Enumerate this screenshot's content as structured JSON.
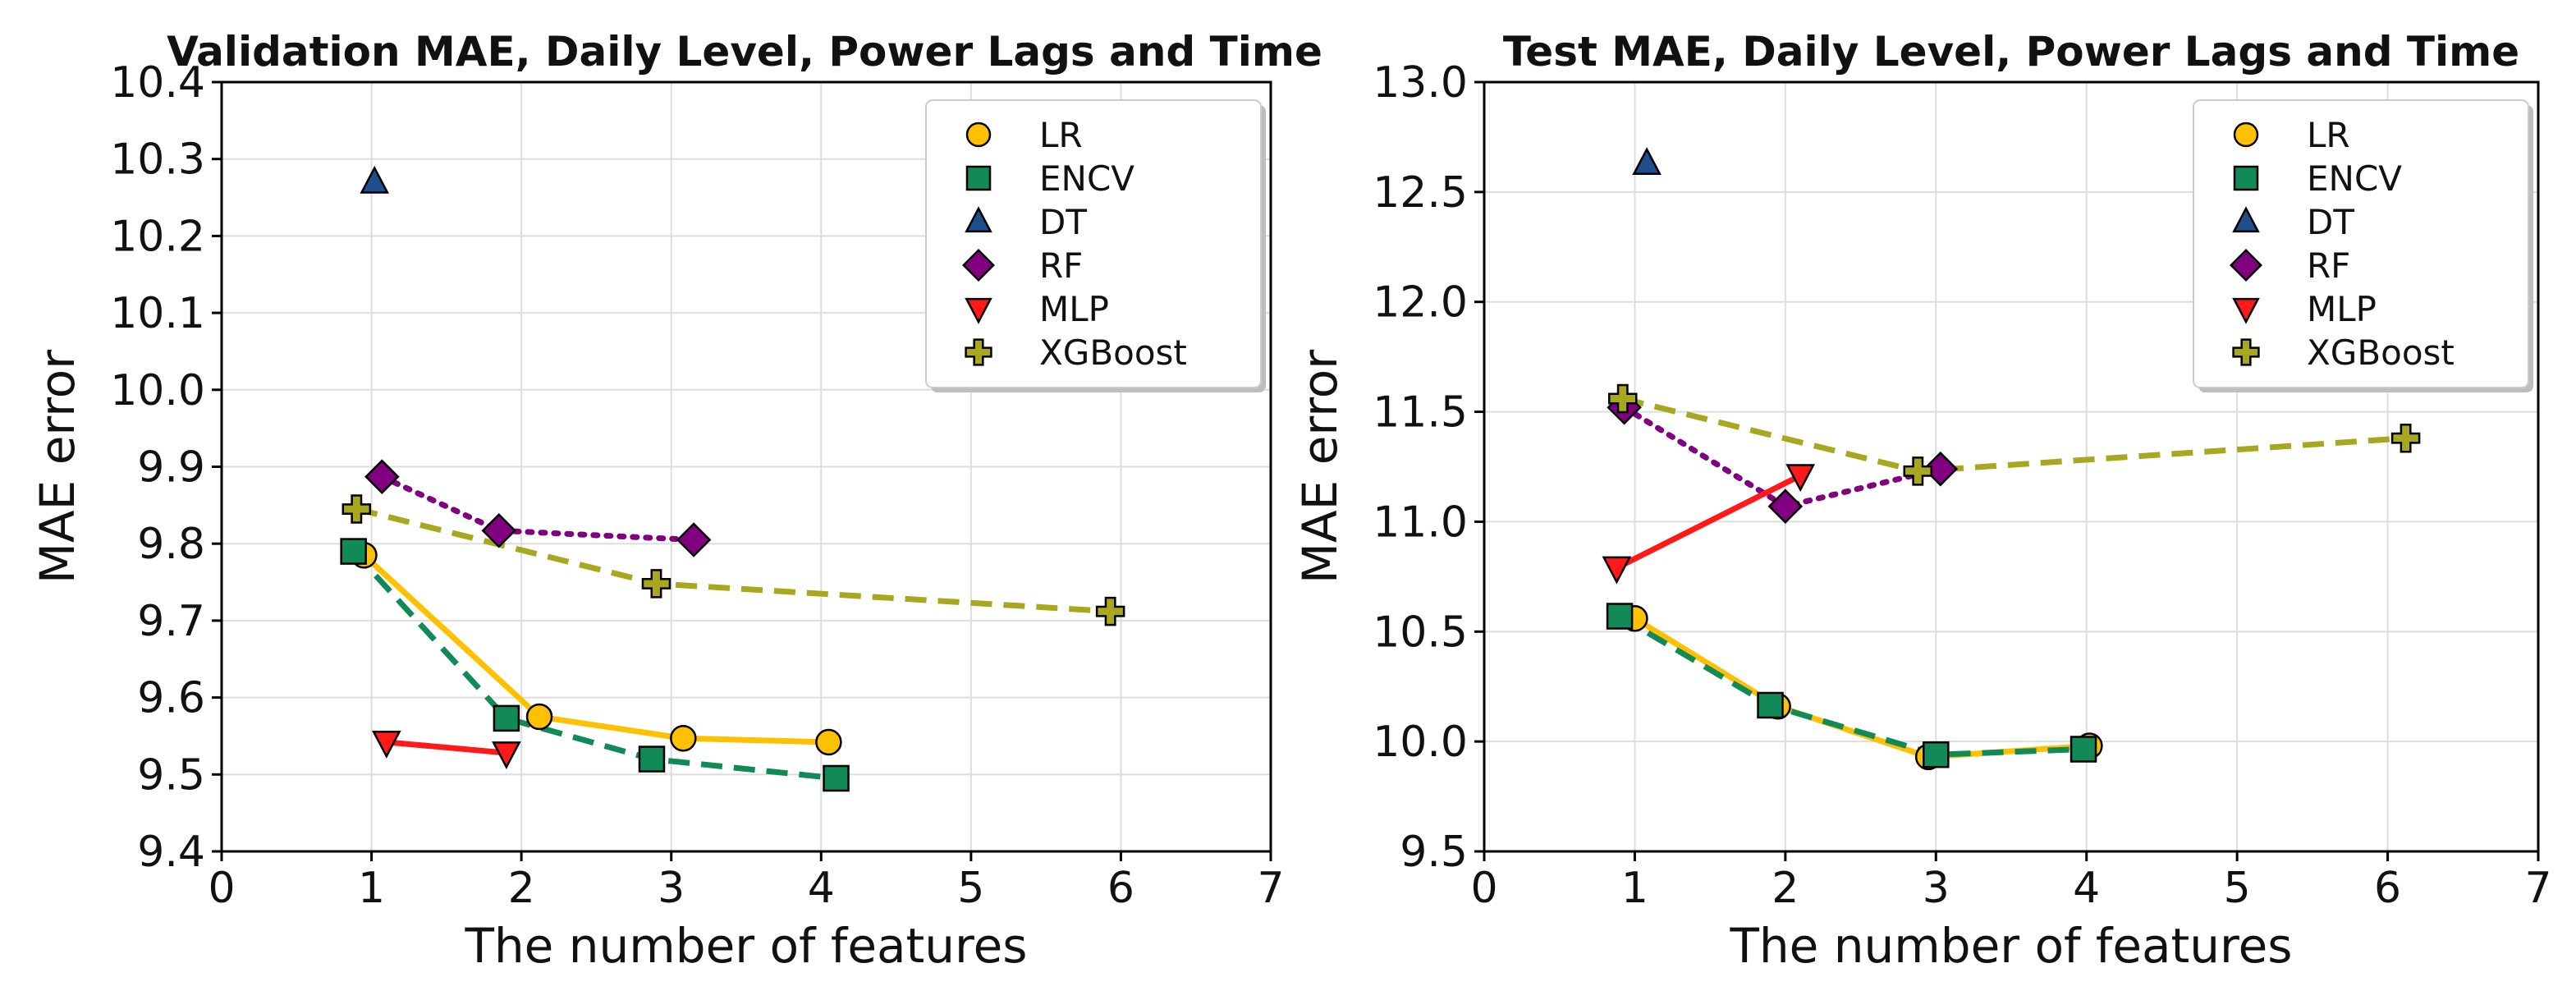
{
  "chart_data": [
    {
      "type": "line",
      "title": "Validation MAE, Daily Level, Power Lags and Time",
      "xlabel": "The number of features",
      "ylabel": "MAE error",
      "xlim": [
        0,
        7
      ],
      "ylim": [
        9.4,
        10.4
      ],
      "xticks": [
        "0",
        "1",
        "2",
        "3",
        "4",
        "5",
        "6",
        "7"
      ],
      "yticks": [
        "9.4",
        "9.5",
        "9.6",
        "9.7",
        "9.8",
        "9.9",
        "10.0",
        "10.1",
        "10.2",
        "10.3",
        "10.4"
      ],
      "grid": true,
      "legend_position": "top-right",
      "series": [
        {
          "name": "LR",
          "color": "#FFC000",
          "marker": "circle",
          "line": "solid",
          "x": [
            0.95,
            2.12,
            3.08,
            4.05
          ],
          "y": [
            9.785,
            9.575,
            9.547,
            9.542
          ]
        },
        {
          "name": "ENCV",
          "color": "#118A57",
          "marker": "square",
          "line": "dashed",
          "x": [
            0.88,
            1.9,
            2.87,
            4.1
          ],
          "y": [
            9.79,
            9.573,
            9.52,
            9.495
          ]
        },
        {
          "name": "DT",
          "color": "#1F4E8C",
          "marker": "triangle-up",
          "line": "none",
          "x": [
            1.02
          ],
          "y": [
            10.27
          ]
        },
        {
          "name": "RF",
          "color": "#800080",
          "marker": "diamond",
          "line": "dotted",
          "x": [
            1.07,
            1.85,
            3.15
          ],
          "y": [
            9.887,
            9.817,
            9.805
          ]
        },
        {
          "name": "MLP",
          "color": "#FF1A1A",
          "marker": "triangle-down",
          "line": "solid",
          "x": [
            1.1,
            1.9
          ],
          "y": [
            9.542,
            9.528
          ]
        },
        {
          "name": "XGBoost",
          "color": "#A8A820",
          "marker": "plus",
          "line": "dashed",
          "x": [
            0.9,
            2.9,
            5.93
          ],
          "y": [
            9.845,
            9.748,
            9.712
          ]
        }
      ]
    },
    {
      "type": "line",
      "title": "Test MAE, Daily Level, Power Lags and Time",
      "xlabel": "The number of features",
      "ylabel": "MAE error",
      "xlim": [
        0,
        7
      ],
      "ylim": [
        9.5,
        13.0
      ],
      "xticks": [
        "0",
        "1",
        "2",
        "3",
        "4",
        "5",
        "6",
        "7"
      ],
      "yticks": [
        "9.5",
        "10.0",
        "10.5",
        "11.0",
        "11.5",
        "12.0",
        "12.5",
        "13.0"
      ],
      "grid": true,
      "legend_position": "top-right",
      "series": [
        {
          "name": "LR",
          "color": "#FFC000",
          "marker": "circle",
          "line": "solid",
          "x": [
            1.0,
            1.95,
            2.95,
            4.02
          ],
          "y": [
            10.56,
            10.16,
            9.93,
            9.98
          ]
        },
        {
          "name": "ENCV",
          "color": "#118A57",
          "marker": "square",
          "line": "dashed",
          "x": [
            0.9,
            1.9,
            3.0,
            3.98
          ],
          "y": [
            10.57,
            10.165,
            9.94,
            9.965
          ]
        },
        {
          "name": "DT",
          "color": "#1F4E8C",
          "marker": "triangle-up",
          "line": "none",
          "x": [
            1.08
          ],
          "y": [
            12.63
          ]
        },
        {
          "name": "RF",
          "color": "#800080",
          "marker": "diamond",
          "line": "dotted",
          "x": [
            0.93,
            2.0,
            3.03
          ],
          "y": [
            11.52,
            11.07,
            11.24
          ]
        },
        {
          "name": "MLP",
          "color": "#FF1A1A",
          "marker": "triangle-down",
          "line": "solid",
          "x": [
            0.88,
            2.1
          ],
          "y": [
            10.79,
            11.21
          ]
        },
        {
          "name": "XGBoost",
          "color": "#A8A820",
          "marker": "plus",
          "line": "dashed",
          "x": [
            0.92,
            2.88,
            6.12
          ],
          "y": [
            11.56,
            11.23,
            11.38
          ]
        }
      ]
    }
  ]
}
